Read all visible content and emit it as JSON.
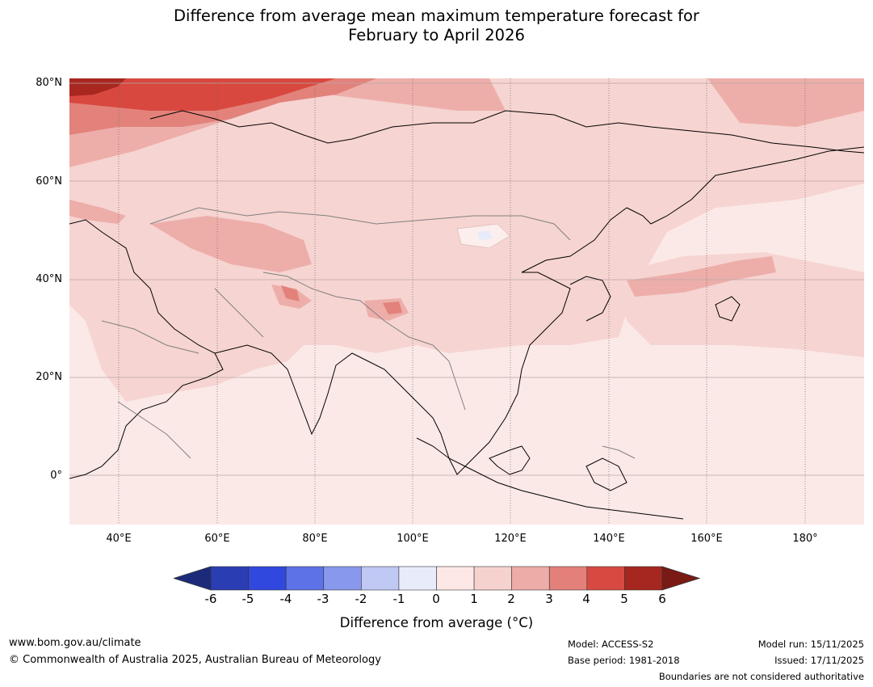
{
  "title_line1": "Difference from average mean maximum temperature forecast for",
  "title_line2": "February to April 2026",
  "map": {
    "lat_labels": [
      "80°N",
      "60°N",
      "40°N",
      "20°N",
      "0°"
    ],
    "lon_labels": [
      "40°E",
      "60°E",
      "80°E",
      "100°E",
      "120°E",
      "140°E",
      "160°E",
      "180°"
    ],
    "lon_range": [
      30,
      192
    ],
    "lat_range": [
      -10,
      81
    ]
  },
  "legend": {
    "ticks": [
      "-6",
      "-5",
      "-4",
      "-3",
      "-2",
      "-1",
      "0",
      "1",
      "2",
      "3",
      "4",
      "5",
      "6"
    ],
    "colors": [
      "#1c2b79",
      "#2a3db3",
      "#3148de",
      "#5d72e6",
      "#8898ec",
      "#c0c8f4",
      "#e8ebfa",
      "#fde8e7",
      "#f6d2cf",
      "#edaca8",
      "#e4807a",
      "#d84a41",
      "#a6271f",
      "#7a1a14"
    ],
    "label": "Difference from average (°C)"
  },
  "footer": {
    "url": "www.bom.gov.au/climate",
    "copyright": "© Commonwealth of Australia 2025, Australian Bureau of Meteorology",
    "model": "Model: ACCESS-S2",
    "base_period": "Base period: 1981-2018",
    "model_run": "Model run: 15/11/2025",
    "issued": "Issued: 17/11/2025",
    "disclaimer": "Boundaries are not considered authoritative"
  }
}
